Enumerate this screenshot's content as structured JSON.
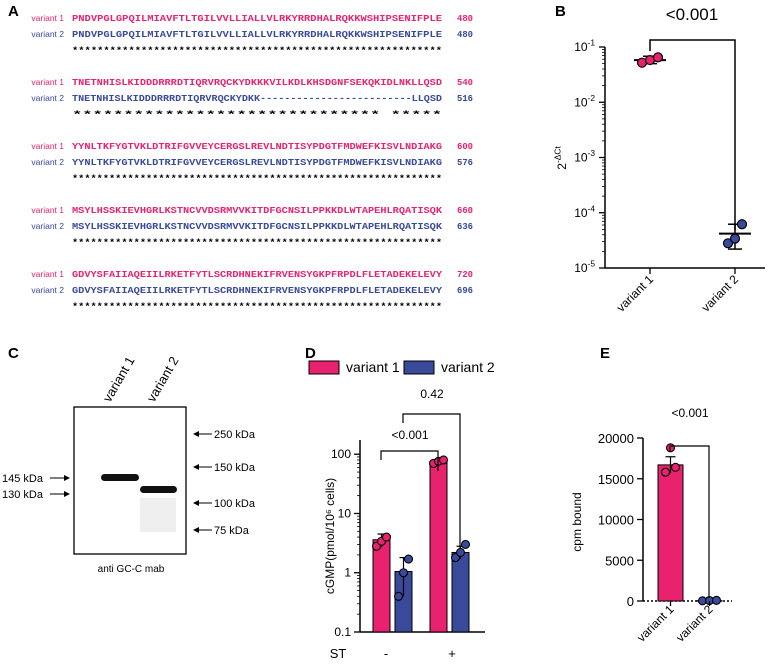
{
  "panels": {
    "A": "A",
    "B": "B",
    "C": "C",
    "D": "D",
    "E": "E"
  },
  "colors": {
    "variant1": "#e8226f",
    "variant2": "#3a4a9b",
    "text": "#000000"
  },
  "alignment": {
    "blocks": [
      {
        "v1_label": "variant 1",
        "v1_seq": "PNDVPGLGPQILMIAVFTLTGILVVLLIALLVLRKYRRDHALRQKKWSHIPSENIFPLE",
        "v1_num": "480",
        "v2_label": "variant 2",
        "v2_seq": "PNDVPGLGPQILMIAVFTLTGILVVLLIALLVLRKYRRDHALRQKKWSHIPSENIFPLE",
        "v2_num": "480",
        "cons": "***********************************************************"
      },
      {
        "v1_label": "variant 1",
        "v1_seq": "TNETNHISLKIDDDRRRDTIQRVRQCKYDKKKVILKDLKHSDGNFSEKQKIDLNKLLQSD",
        "v1_num": "540",
        "v2_label": "variant 2",
        "v2_seq": "TNETNHISLKIDDDRRRDTIQRVRQCKYDKK-------------------------LLQSD",
        "v2_num": "516",
        "cons": "******************************                         *****"
      },
      {
        "v1_label": "variant 1",
        "v1_seq": "YYNLTKFYGTVKLDTRIFGVVEYCERGSLREVLNDTISYPDGTFMDWEFKISVLNDIAKG",
        "v1_num": "600",
        "v2_label": "variant 2",
        "v2_seq": "YYNLTKFYGTVKLDTRIFGVVEYCERGSLREVLNDTISYPDGTFMDWEFKISVLNDIAKG",
        "v2_num": "576",
        "cons": "************************************************************"
      },
      {
        "v1_label": "variant 1",
        "v1_seq": "MSYLHSSKIEVHGRLKSTNCVVDSRMVVKITDFGCNSILPPKKDLWTAPEHLRQATISQK",
        "v1_num": "660",
        "v2_label": "variant 2",
        "v2_seq": "MSYLHSSKIEVHGRLKSTNCVVDSRMVVKITDFGCNSILPPKKDLWTAPEHLRQATISQK",
        "v2_num": "636",
        "cons": "************************************************************"
      },
      {
        "v1_label": "variant 1",
        "v1_seq": "GDVYSFAIIAQEIILRKETFYTLSCRDHNEKIFRVENSYGKPFRPDLFLETADEKELEVY",
        "v1_num": "720",
        "v2_label": "variant 2",
        "v2_seq": "GDVYSFAIIAQEIILRKETFYTLSCRDHNEKIFRVENSYGKPFRPDLFLETADEKELEVY",
        "v2_num": "696",
        "cons": "************************************************************"
      }
    ]
  },
  "chart_data": [
    {
      "panel": "B",
      "type": "scatter",
      "yscale": "log",
      "ylabel_base": "2",
      "ylabel_exp": "-ΔCt",
      "ylim": [
        1e-05,
        0.1
      ],
      "yticks": [
        {
          "base": "10",
          "exp": "-1",
          "value": 0.1
        },
        {
          "base": "10",
          "exp": "-2",
          "value": 0.01
        },
        {
          "base": "10",
          "exp": "-3",
          "value": 0.001
        },
        {
          "base": "10",
          "exp": "-4",
          "value": 0.0001
        },
        {
          "base": "10",
          "exp": "-5",
          "value": 1e-05
        }
      ],
      "categories": [
        "variant 1",
        "variant 2"
      ],
      "series": [
        {
          "name": "variant 1",
          "points": [
            0.052,
            0.058,
            0.065
          ],
          "mean": 0.058,
          "err": [
            0.05,
            0.068
          ]
        },
        {
          "name": "variant 2",
          "points": [
            2.8e-05,
            3.4e-05,
            6.2e-05
          ],
          "mean": 4.2e-05,
          "err": [
            2.2e-05,
            6.2e-05
          ]
        }
      ],
      "annotation": "<0.001"
    },
    {
      "panel": "C",
      "type": "blot",
      "lane_labels": [
        "variant 1",
        "variant 2"
      ],
      "markers_right": [
        {
          "label": "250 kDa",
          "kda": 250
        },
        {
          "label": "150 kDa",
          "kda": 150
        },
        {
          "label": "100 kDa",
          "kda": 100
        },
        {
          "label": "75 kDa",
          "kda": 75
        }
      ],
      "markers_left": [
        {
          "label": "145 kDa",
          "kda": 145
        },
        {
          "label": "130 kDa",
          "kda": 130
        }
      ],
      "caption": "anti GC-C mab"
    },
    {
      "panel": "D",
      "type": "bar",
      "yscale": "log",
      "ylabel": "cGMP(pmol/10⁶ cells)",
      "ylim": [
        0.1,
        100
      ],
      "yticks": [
        {
          "label": "0.1",
          "value": 0.1
        },
        {
          "label": "1",
          "value": 1
        },
        {
          "label": "10",
          "value": 10
        },
        {
          "label": "100",
          "value": 100
        }
      ],
      "legend": [
        "variant 1",
        "variant 2"
      ],
      "xlabel": "ST",
      "groups": [
        {
          "label": "-",
          "bars": [
            {
              "series": "variant 1",
              "value": 3.6,
              "err": [
                2.7,
                4.5
              ],
              "points": [
                2.8,
                3.4,
                4.0
              ]
            },
            {
              "series": "variant 2",
              "value": 1.05,
              "err": [
                0.4,
                1.8
              ],
              "points": [
                0.4,
                1.0,
                1.7
              ]
            }
          ]
        },
        {
          "label": "+",
          "bars": [
            {
              "series": "variant 1",
              "value": 75,
              "err": [
                68,
                82
              ],
              "points": [
                70,
                76,
                80
              ]
            },
            {
              "series": "variant 2",
              "value": 2.2,
              "err": [
                1.7,
                2.8
              ],
              "points": [
                1.8,
                2.2,
                3.0
              ]
            }
          ]
        }
      ],
      "annotations": [
        "<0.001",
        "0.42"
      ]
    },
    {
      "panel": "E",
      "type": "bar",
      "ylabel": "cpm bound",
      "ylim": [
        0,
        20000
      ],
      "yticks": [
        {
          "label": "0",
          "value": 0
        },
        {
          "label": "5000",
          "value": 5000
        },
        {
          "label": "10000",
          "value": 10000
        },
        {
          "label": "15000",
          "value": 15000
        },
        {
          "label": "20000",
          "value": 20000
        }
      ],
      "categories": [
        "variant 1",
        "variant 2"
      ],
      "bars": [
        {
          "series": "variant 1",
          "value": 16700,
          "err": [
            15700,
            17700
          ],
          "points": [
            15800,
            16400,
            18800
          ]
        },
        {
          "series": "variant 2",
          "value": 40,
          "err": [
            0,
            80
          ],
          "points": [
            20,
            60,
            80
          ]
        }
      ],
      "annotation": "<0.001"
    }
  ]
}
